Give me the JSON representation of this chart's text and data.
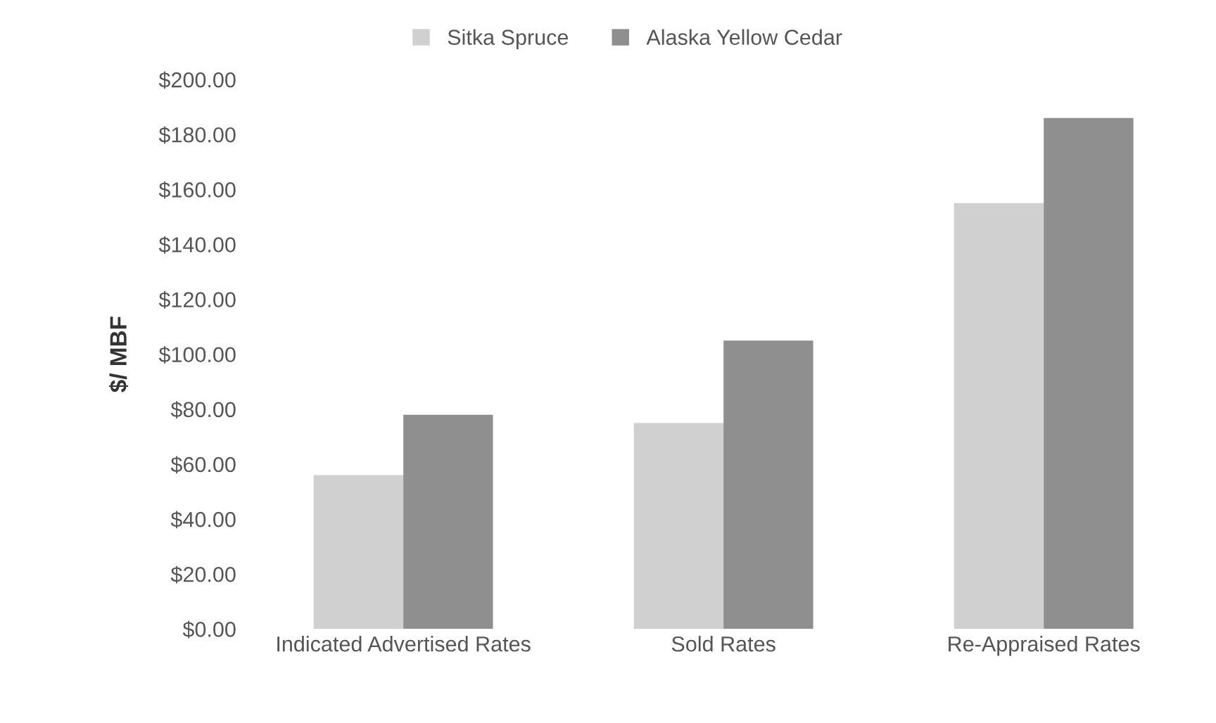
{
  "chart_data": {
    "type": "bar",
    "ylabel": "$/ MBF",
    "categories": [
      "Indicated Advertised Rates",
      "Sold Rates",
      "Re-Appraised Rates"
    ],
    "series": [
      {
        "name": "Sitka Spruce",
        "color": "#d0d0d0",
        "values": [
          56,
          75,
          155
        ]
      },
      {
        "name": "Alaska Yellow Cedar",
        "color": "#8f8f8f",
        "values": [
          78,
          105,
          186
        ]
      }
    ],
    "ylim": [
      0,
      200
    ],
    "yticks": [
      {
        "value": 0,
        "label": "$0.00"
      },
      {
        "value": 20,
        "label": "$20.00"
      },
      {
        "value": 40,
        "label": "$40.00"
      },
      {
        "value": 60,
        "label": "$60.00"
      },
      {
        "value": 80,
        "label": "$80.00"
      },
      {
        "value": 100,
        "label": "$100.00"
      },
      {
        "value": 120,
        "label": "$120.00"
      },
      {
        "value": 140,
        "label": "$140.00"
      },
      {
        "value": 160,
        "label": "$160.00"
      },
      {
        "value": 180,
        "label": "$180.00"
      },
      {
        "value": 200,
        "label": "$200.00"
      }
    ],
    "grid": false,
    "legend": "top"
  }
}
